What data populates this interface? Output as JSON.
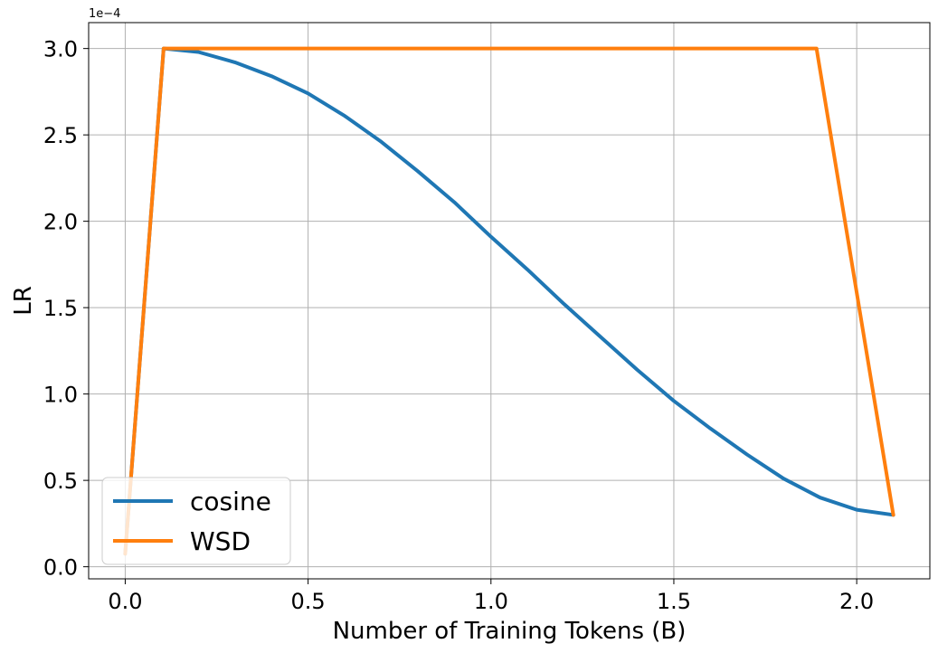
{
  "chart_data": {
    "type": "line",
    "title": "",
    "xlabel": "Number of Training Tokens (B)",
    "ylabel": "LR",
    "y_multiplier_label": "1e−4",
    "xlim": [
      -0.1,
      2.2
    ],
    "ylim": [
      -0.07,
      3.15
    ],
    "x_ticks": [
      0.0,
      0.5,
      1.0,
      1.5,
      2.0
    ],
    "x_tick_labels": [
      "0.0",
      "0.5",
      "1.0",
      "1.5",
      "2.0"
    ],
    "y_ticks": [
      0.0,
      0.5,
      1.0,
      1.5,
      2.0,
      2.5,
      3.0
    ],
    "y_tick_labels": [
      "0.0",
      "0.5",
      "1.0",
      "1.5",
      "2.0",
      "2.5",
      "3.0"
    ],
    "grid": true,
    "legend_position": "lower-left",
    "series": [
      {
        "name": "cosine",
        "color": "#1f77b4",
        "x": [
          0.0,
          0.105,
          0.2,
          0.3,
          0.4,
          0.5,
          0.6,
          0.7,
          0.8,
          0.9,
          1.0,
          1.1,
          1.2,
          1.3,
          1.4,
          1.5,
          1.6,
          1.7,
          1.8,
          1.9,
          2.0,
          2.1
        ],
        "y": [
          0.075,
          3.0,
          2.98,
          2.92,
          2.84,
          2.74,
          2.61,
          2.46,
          2.29,
          2.11,
          1.91,
          1.72,
          1.52,
          1.33,
          1.14,
          0.96,
          0.8,
          0.65,
          0.51,
          0.4,
          0.33,
          0.3
        ]
      },
      {
        "name": "WSD",
        "color": "#ff7f0e",
        "x": [
          0.0,
          0.105,
          1.89,
          2.1
        ],
        "y": [
          0.075,
          3.0,
          3.0,
          0.3
        ]
      }
    ]
  }
}
